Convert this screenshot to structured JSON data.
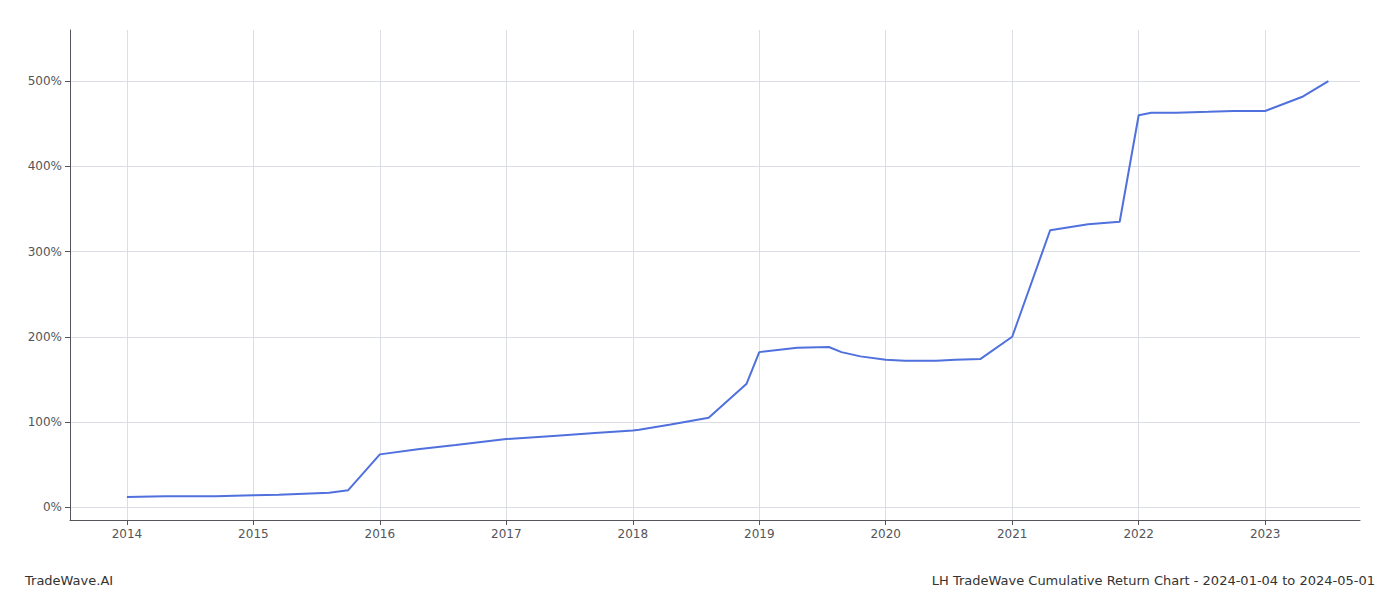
{
  "chart_data": {
    "type": "line",
    "annotations": [
      "TradeWave.AI",
      "LH TradeWave Cumulative Return Chart - 2024-01-04 to 2024-05-01"
    ],
    "x": [
      2014.0,
      2014.3,
      2014.7,
      2015.0,
      2015.2,
      2015.6,
      2015.75,
      2016.0,
      2016.3,
      2016.6,
      2017.0,
      2017.4,
      2017.7,
      2018.0,
      2018.05,
      2018.3,
      2018.6,
      2018.9,
      2019.0,
      2019.3,
      2019.55,
      2019.65,
      2019.8,
      2020.0,
      2020.15,
      2020.4,
      2020.55,
      2020.75,
      2021.0,
      2021.3,
      2021.6,
      2021.85,
      2022.0,
      2022.1,
      2022.3,
      2022.55,
      2022.75,
      2023.0,
      2023.3,
      2023.5
    ],
    "values": [
      0.12,
      0.13,
      0.13,
      0.14,
      0.145,
      0.17,
      0.2,
      0.62,
      0.68,
      0.73,
      0.8,
      0.84,
      0.87,
      0.9,
      0.91,
      0.97,
      1.05,
      1.45,
      1.82,
      1.87,
      1.88,
      1.82,
      1.77,
      1.73,
      1.72,
      1.72,
      1.73,
      1.74,
      2.0,
      3.25,
      3.32,
      3.35,
      4.6,
      4.63,
      4.63,
      4.64,
      4.65,
      4.65,
      4.82,
      5.0
    ],
    "xlim": [
      2013.55,
      2023.75
    ],
    "xticks": [
      2014,
      2015,
      2016,
      2017,
      2018,
      2019,
      2020,
      2021,
      2022,
      2023
    ],
    "ylim": [
      -0.15,
      5.6
    ],
    "yticks": [
      {
        "value": 0.0,
        "label": "0%"
      },
      {
        "value": 1.0,
        "label": "100%"
      },
      {
        "value": 2.0,
        "label": "200%"
      },
      {
        "value": 3.0,
        "label": "300%"
      },
      {
        "value": 4.0,
        "label": "400%"
      },
      {
        "value": 5.0,
        "label": "500%"
      }
    ],
    "grid": true
  }
}
